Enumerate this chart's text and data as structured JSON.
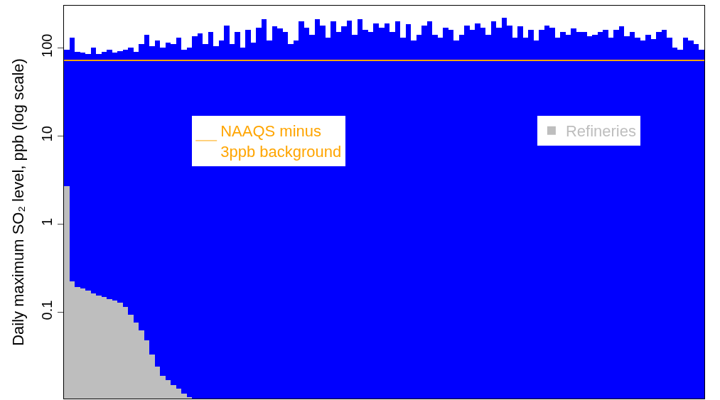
{
  "chart_data": {
    "type": "bar",
    "ylabel": "Daily maximum SO₂ level, ppb (log scale)",
    "categories": [
      null,
      null,
      null,
      null,
      null,
      null,
      null,
      null,
      null,
      null,
      null,
      null,
      null,
      null,
      null,
      null,
      null,
      null,
      null,
      null,
      null,
      null,
      null,
      null,
      null,
      null,
      null,
      null,
      null,
      null,
      null,
      null,
      null,
      null,
      null,
      null,
      null,
      null,
      null,
      null,
      null,
      null,
      null,
      null,
      null,
      null,
      null,
      null,
      null,
      null,
      null,
      null,
      null,
      null,
      null,
      null,
      null,
      null,
      null,
      null,
      null,
      null,
      null,
      null,
      null,
      null,
      null,
      null,
      null,
      null,
      null,
      null,
      null,
      null,
      null,
      null,
      null,
      null,
      null,
      null,
      null,
      null,
      null,
      null,
      null,
      null,
      null,
      null,
      null,
      null,
      null,
      null,
      null,
      null,
      null,
      null,
      null,
      null,
      null,
      null,
      null,
      null,
      null,
      null,
      null,
      null,
      null,
      null,
      null,
      null,
      null,
      null,
      null,
      null,
      null,
      null,
      null,
      null,
      null,
      null
    ],
    "series": [
      {
        "color": "#0000ff",
        "values": [
          95,
          130,
          90,
          88,
          85,
          100,
          85,
          90,
          95,
          88,
          92,
          95,
          100,
          90,
          110,
          140,
          105,
          120,
          100,
          115,
          110,
          130,
          95,
          100,
          135,
          145,
          110,
          150,
          105,
          120,
          180,
          110,
          150,
          100,
          160,
          115,
          170,
          210,
          120,
          175,
          165,
          150,
          110,
          120,
          200,
          170,
          140,
          210,
          180,
          130,
          200,
          150,
          175,
          205,
          140,
          210,
          160,
          150,
          190,
          170,
          190,
          150,
          200,
          130,
          185,
          120,
          140,
          180,
          200,
          140,
          130,
          170,
          160,
          120,
          140,
          180,
          160,
          190,
          170,
          140,
          200,
          170,
          220,
          180,
          130,
          175,
          130,
          160,
          120,
          160,
          180,
          170,
          130,
          150,
          140,
          165,
          150,
          150,
          135,
          140,
          150,
          160,
          130,
          160,
          175,
          135,
          150,
          130,
          120,
          140,
          125,
          150,
          160,
          130,
          100,
          95,
          130,
          120,
          110,
          95
        ]
      },
      {
        "name": "Refineries",
        "color": "#bebebe",
        "values": [
          2.7,
          0.226,
          0.195,
          0.185,
          0.175,
          0.165,
          0.156,
          0.148,
          0.14,
          0.135,
          0.128,
          0.114,
          0.093,
          0.076,
          0.062,
          0.048,
          0.033,
          0.024,
          0.019,
          0.017,
          0.015,
          0.0135,
          0.012,
          0.0108,
          null,
          null,
          null,
          null,
          null,
          null,
          null,
          null,
          null,
          null,
          null,
          null,
          null,
          null,
          null,
          null,
          null,
          null,
          null,
          null,
          null,
          null,
          null,
          null,
          null,
          null,
          null,
          null,
          null,
          null,
          null,
          null,
          null,
          null,
          null,
          null,
          null,
          null,
          null,
          null,
          null,
          null,
          null,
          null,
          null,
          null,
          null,
          null,
          null,
          null,
          null,
          null,
          null,
          null,
          null,
          null,
          null,
          null,
          null,
          null,
          null,
          null,
          null,
          null,
          null,
          null,
          null,
          null,
          null,
          null,
          null,
          null,
          null,
          null,
          null,
          null,
          null,
          null,
          null,
          null,
          null,
          null,
          null,
          null,
          null,
          null,
          null,
          null,
          null,
          null,
          null,
          null,
          null,
          null,
          null,
          null
        ]
      }
    ],
    "log": "y",
    "ylim": [
      0.0105,
      300
    ],
    "yticks": [
      0.1,
      1,
      10,
      100
    ],
    "tick_labels": "y",
    "ref_lines": [
      {
        "axis": "y",
        "value": 72,
        "label": "NAAQS minus\n3ppb background",
        "color": "#ffa500"
      }
    ],
    "legend": "top right"
  }
}
